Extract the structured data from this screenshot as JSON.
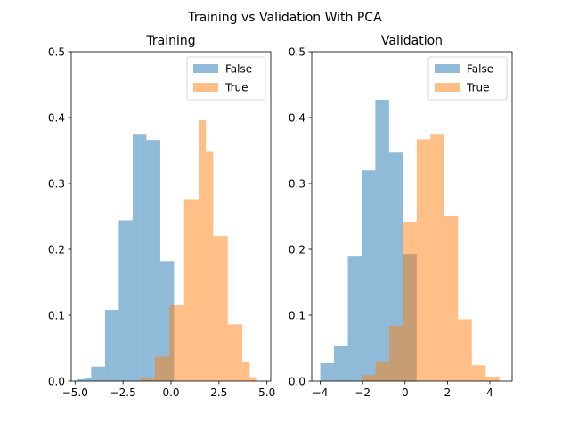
{
  "suptitle": "Training vs Validation With PCA",
  "colors": {
    "false": "#1f77b4",
    "true": "#ff7f0e"
  },
  "bar_alpha": 0.5,
  "chart_data": [
    {
      "type": "bar",
      "title": "Training",
      "xlim": [
        -5.2,
        5.2
      ],
      "ylim": [
        0,
        0.5
      ],
      "xticks": [
        -5.0,
        -2.5,
        0.0,
        2.5,
        5.0
      ],
      "xtick_labels": [
        "−5.0",
        "−2.5",
        "0.0",
        "2.5",
        "5.0"
      ],
      "yticks": [
        0,
        0.1,
        0.2,
        0.3,
        0.4,
        0.5
      ],
      "ytick_labels": [
        "0.0",
        "0.1",
        "0.2",
        "0.3",
        "0.4",
        "0.5"
      ],
      "legend": {
        "position": "top-right",
        "entries": [
          "False",
          "True"
        ]
      },
      "series": [
        {
          "name": "False",
          "bin_edges": [
            -4.88,
            -4.52,
            -4.16,
            -3.8,
            -3.44,
            -3.08,
            -2.72,
            -2.36,
            -2.0,
            -1.64,
            -1.28,
            -0.92,
            -0.56,
            -0.2,
            0.16
          ],
          "values": [
            0.003,
            0.005,
            0.022,
            0.022,
            0.108,
            0.108,
            0.244,
            0.244,
            0.374,
            0.374,
            0.366,
            0.366,
            0.182,
            0.182
          ]
        },
        {
          "name": "True",
          "bin_edges": [
            -1.6,
            -1.22,
            -0.84,
            -0.46,
            -0.08,
            0.3,
            0.68,
            1.06,
            1.44,
            1.82,
            2.2,
            2.58,
            2.96,
            3.34,
            3.72,
            4.1,
            4.48
          ],
          "values": [
            0.005,
            0.005,
            0.037,
            0.037,
            0.116,
            0.116,
            0.275,
            0.275,
            0.396,
            0.348,
            0.22,
            0.22,
            0.086,
            0.086,
            0.03,
            0.006
          ]
        }
      ]
    },
    {
      "type": "bar",
      "title": "Validation",
      "xlim": [
        -4.4,
        5.05
      ],
      "ylim": [
        0,
        0.5
      ],
      "xticks": [
        -4,
        -2,
        0,
        2,
        4
      ],
      "xtick_labels": [
        "−4",
        "−2",
        "0",
        "2",
        "4"
      ],
      "yticks": [
        0,
        0.1,
        0.2,
        0.3,
        0.4,
        0.5
      ],
      "ytick_labels": [
        "0.0",
        "0.1",
        "0.2",
        "0.3",
        "0.4",
        "0.5"
      ],
      "legend": {
        "position": "top-right",
        "entries": [
          "False",
          "True"
        ]
      },
      "series": [
        {
          "name": "False",
          "bin_edges": [
            -4.0,
            -3.35,
            -2.7,
            -2.05,
            -1.4,
            -0.75,
            -0.1,
            0.55
          ],
          "values": [
            0.027,
            0.054,
            0.189,
            0.32,
            0.427,
            0.347,
            0.193
          ]
        },
        {
          "name": "True",
          "bin_edges": [
            -2.05,
            -1.4,
            -0.75,
            -0.1,
            0.55,
            1.2,
            1.85,
            2.5,
            3.15,
            3.8,
            4.45
          ],
          "values": [
            0.009,
            0.03,
            0.084,
            0.242,
            0.367,
            0.374,
            0.251,
            0.094,
            0.024,
            0.007
          ]
        }
      ]
    }
  ]
}
